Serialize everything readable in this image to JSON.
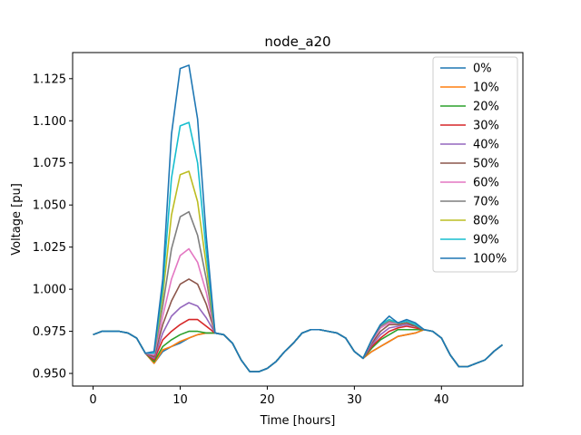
{
  "chart_data": {
    "type": "line",
    "title": "node_a20",
    "xlabel": "Time [hours]",
    "ylabel": "Voltage [pu]",
    "xlim": [
      -2.35,
      49.35
    ],
    "ylim": [
      0.9425,
      1.1405
    ],
    "xticks": [
      0,
      10,
      20,
      30,
      40
    ],
    "yticks": [
      0.95,
      0.975,
      1.0,
      1.025,
      1.05,
      1.075,
      1.1,
      1.125
    ],
    "ytick_labels": [
      "0.950",
      "0.975",
      "1.000",
      "1.025",
      "1.050",
      "1.075",
      "1.100",
      "1.125"
    ],
    "legend_position": "upper right",
    "grid": false,
    "base": [
      0.973,
      0.975,
      0.975,
      0.975,
      0.974,
      0.971,
      0.962,
      0.956,
      0.958,
      0.962,
      0.964,
      0.967,
      0.97,
      0.972,
      0.974,
      0.973,
      0.968,
      0.958,
      0.951,
      0.951,
      0.953,
      0.957,
      0.963,
      0.968,
      0.974,
      0.976,
      0.976,
      0.975,
      0.974,
      0.971,
      0.963,
      0.959,
      0.964,
      0.968,
      0.969,
      0.972,
      0.975,
      0.976,
      0.976,
      0.975,
      0.971,
      0.961,
      0.954,
      0.954,
      0.956,
      0.958,
      0.963,
      0.967
    ],
    "series": [
      {
        "name": "0%",
        "color": "#1f77b4",
        "peak": [
          0.956,
          0.963,
          0.966,
          0.968,
          0.971,
          0.973,
          0.974
        ],
        "late": [
          0.963,
          0.966,
          0.969,
          0.972,
          0.973,
          0.974
        ]
      },
      {
        "name": "10%",
        "color": "#ff7f0e",
        "peak": [
          0.956,
          0.964,
          0.966,
          0.969,
          0.971,
          0.973,
          0.974
        ],
        "late": [
          0.963,
          0.966,
          0.969,
          0.972,
          0.973,
          0.974
        ]
      },
      {
        "name": "20%",
        "color": "#2ca02c",
        "peak": [
          0.957,
          0.966,
          0.97,
          0.973,
          0.975,
          0.975,
          0.974
        ],
        "late": [
          0.965,
          0.97,
          0.973,
          0.976,
          0.976,
          0.976
        ]
      },
      {
        "name": "30%",
        "color": "#d62728",
        "peak": [
          0.958,
          0.97,
          0.975,
          0.979,
          0.982,
          0.982,
          0.978
        ],
        "late": [
          0.966,
          0.971,
          0.975,
          0.977,
          0.978,
          0.977
        ]
      },
      {
        "name": "40%",
        "color": "#9467bd",
        "peak": [
          0.959,
          0.974,
          0.984,
          0.989,
          0.992,
          0.99,
          0.983
        ],
        "late": [
          0.967,
          0.973,
          0.977,
          0.978,
          0.979,
          0.978
        ]
      },
      {
        "name": "50%",
        "color": "#8c564b",
        "peak": [
          0.96,
          0.979,
          0.993,
          1.003,
          1.006,
          1.003,
          0.991
        ],
        "late": [
          0.968,
          0.975,
          0.979,
          0.979,
          0.98,
          0.978
        ]
      },
      {
        "name": "60%",
        "color": "#e377c2",
        "peak": [
          0.961,
          0.984,
          1.006,
          1.02,
          1.024,
          1.016,
          0.998
        ],
        "late": [
          0.969,
          0.977,
          0.98,
          0.98,
          0.981,
          0.979
        ]
      },
      {
        "name": "70%",
        "color": "#7f7f7f",
        "peak": [
          0.962,
          0.99,
          1.024,
          1.043,
          1.046,
          1.032,
          1.006
        ],
        "late": [
          0.97,
          0.978,
          0.981,
          0.98,
          0.981,
          0.979
        ]
      },
      {
        "name": "80%",
        "color": "#bcbd22",
        "peak": [
          0.962,
          0.996,
          1.044,
          1.068,
          1.07,
          1.052,
          1.014
        ],
        "late": [
          0.97,
          0.979,
          0.982,
          0.98,
          0.981,
          0.979
        ]
      },
      {
        "name": "90%",
        "color": "#17becf",
        "peak": [
          0.962,
          1.001,
          1.066,
          1.097,
          1.099,
          1.075,
          1.022
        ],
        "late": [
          0.97,
          0.979,
          0.982,
          0.98,
          0.981,
          0.979
        ]
      },
      {
        "name": "100%",
        "color": "#1f77b4",
        "peak": [
          0.963,
          1.006,
          1.092,
          1.131,
          1.133,
          1.101,
          1.031
        ],
        "late": [
          0.97,
          0.979,
          0.984,
          0.98,
          0.982,
          0.98
        ]
      }
    ],
    "peak_start_hour": 7,
    "late_start_hour": 32
  }
}
